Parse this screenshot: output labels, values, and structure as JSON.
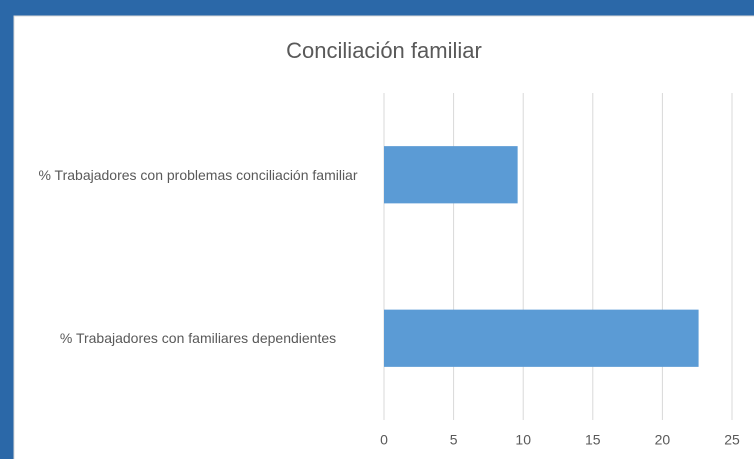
{
  "chart_data": {
    "type": "bar",
    "orientation": "horizontal",
    "title": "Conciliación familiar",
    "categories": [
      "% Trabajadores con problemas conciliación familiar",
      "% Trabajadores con familiares dependientes"
    ],
    "values": [
      9.6,
      22.6
    ],
    "color": "#5b9bd5",
    "xlim": [
      0,
      25
    ],
    "xticks": [
      0,
      5,
      10,
      15,
      20,
      25
    ],
    "grid": true
  }
}
